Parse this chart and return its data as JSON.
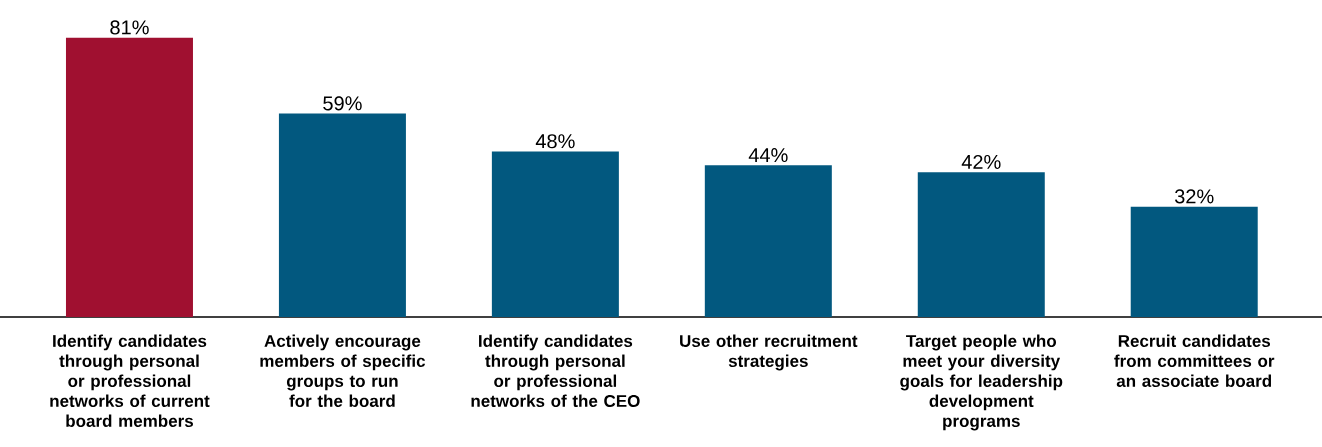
{
  "chart_data": {
    "type": "bar",
    "categories": [
      "Identify candidates through personal or professional networks of current board members",
      "Actively encourage members of specific groups to run for the board",
      "Identify candidates through personal or professional networks of the CEO",
      "Use other recruitment strategies",
      "Target people who meet your diversity goals for leadership development programs",
      "Recruit candidates from committees or an associate board"
    ],
    "values": [
      81,
      59,
      48,
      44,
      42,
      32
    ],
    "value_labels": [
      "81%",
      "59%",
      "48%",
      "44%",
      "42%",
      "32%"
    ],
    "colors": [
      "#a01030",
      "#02587f",
      "#02587f",
      "#02587f",
      "#02587f",
      "#02587f"
    ]
  }
}
